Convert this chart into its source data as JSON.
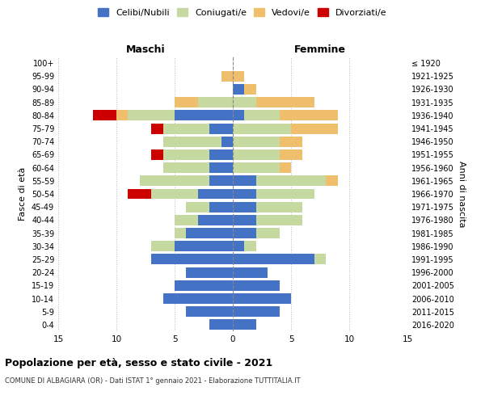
{
  "age_groups": [
    "0-4",
    "5-9",
    "10-14",
    "15-19",
    "20-24",
    "25-29",
    "30-34",
    "35-39",
    "40-44",
    "45-49",
    "50-54",
    "55-59",
    "60-64",
    "65-69",
    "70-74",
    "75-79",
    "80-84",
    "85-89",
    "90-94",
    "95-99",
    "100+"
  ],
  "birth_years": [
    "2016-2020",
    "2011-2015",
    "2006-2010",
    "2001-2005",
    "1996-2000",
    "1991-1995",
    "1986-1990",
    "1981-1985",
    "1976-1980",
    "1971-1975",
    "1966-1970",
    "1961-1965",
    "1956-1960",
    "1951-1955",
    "1946-1950",
    "1941-1945",
    "1936-1940",
    "1931-1935",
    "1926-1930",
    "1921-1925",
    "≤ 1920"
  ],
  "males": {
    "celibi": [
      2,
      4,
      6,
      5,
      4,
      7,
      5,
      4,
      3,
      2,
      3,
      2,
      2,
      2,
      1,
      2,
      5,
      0,
      0,
      0,
      0
    ],
    "coniugati": [
      0,
      0,
      0,
      0,
      0,
      0,
      2,
      1,
      2,
      2,
      4,
      6,
      4,
      4,
      5,
      4,
      4,
      3,
      0,
      0,
      0
    ],
    "vedovi": [
      0,
      0,
      0,
      0,
      0,
      0,
      0,
      0,
      0,
      0,
      0,
      0,
      0,
      0,
      0,
      0,
      1,
      2,
      0,
      1,
      0
    ],
    "divorziati": [
      0,
      0,
      0,
      0,
      0,
      0,
      0,
      0,
      0,
      0,
      2,
      0,
      0,
      1,
      0,
      1,
      2,
      0,
      0,
      0,
      0
    ]
  },
  "females": {
    "nubili": [
      2,
      4,
      5,
      4,
      3,
      7,
      1,
      2,
      2,
      2,
      2,
      2,
      0,
      0,
      0,
      0,
      1,
      0,
      1,
      0,
      0
    ],
    "coniugate": [
      0,
      0,
      0,
      0,
      0,
      1,
      1,
      2,
      4,
      4,
      5,
      6,
      4,
      4,
      4,
      5,
      3,
      2,
      0,
      0,
      0
    ],
    "vedove": [
      0,
      0,
      0,
      0,
      0,
      0,
      0,
      0,
      0,
      0,
      0,
      1,
      1,
      2,
      2,
      4,
      5,
      5,
      1,
      1,
      0
    ],
    "divorziate": [
      0,
      0,
      0,
      0,
      0,
      0,
      0,
      0,
      0,
      0,
      0,
      0,
      0,
      0,
      0,
      0,
      0,
      0,
      0,
      0,
      0
    ]
  },
  "color_celibi": "#4472c4",
  "color_coniugati": "#c5d9a0",
  "color_vedovi": "#f0bf6e",
  "color_divorziati": "#cc0000",
  "title_main": "Popolazione per età, sesso e stato civile - 2021",
  "title_sub": "COMUNE DI ALBAGIARA (OR) - Dati ISTAT 1° gennaio 2021 - Elaborazione TUTTITALIA.IT",
  "xlabel_left": "Maschi",
  "xlabel_right": "Femmine",
  "ylabel_left": "Fasce di età",
  "ylabel_right": "Anni di nascita",
  "xlim": 15,
  "legend_labels": [
    "Celibi/Nubili",
    "Coniugati/e",
    "Vedovi/e",
    "Divorziati/e"
  ]
}
